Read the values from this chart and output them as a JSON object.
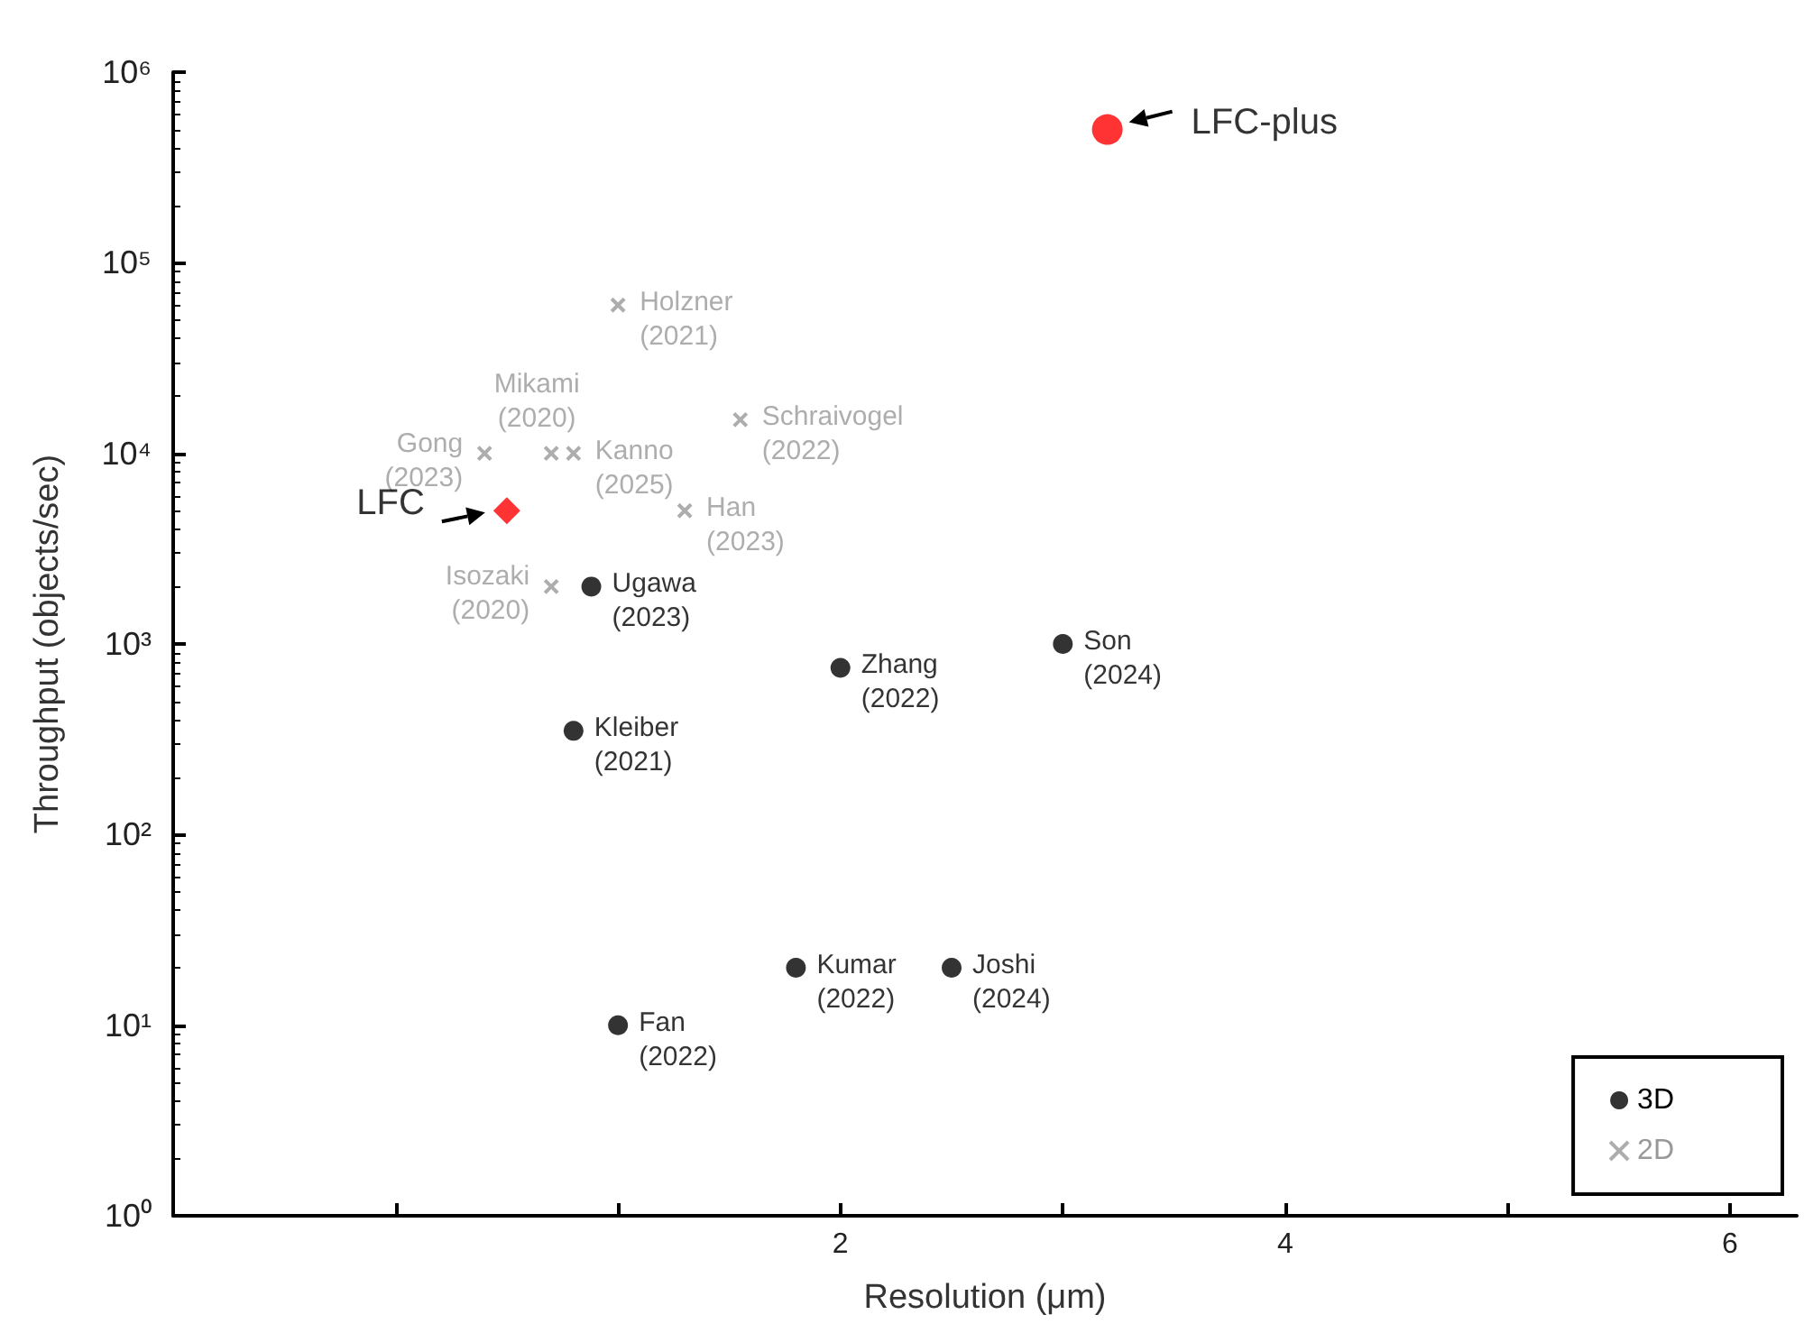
{
  "chart_data": {
    "type": "scatter",
    "xlabel": "Resolution (μm)",
    "ylabel": "Throughput (objects/sec)",
    "log": "y",
    "grid": false,
    "legend": "bottom right",
    "xlim": [
      -1,
      6.3
    ],
    "xticks": [
      {
        "value": 0,
        "label": null
      },
      {
        "value": 1,
        "label": null
      },
      2,
      {
        "value": 3,
        "label": null
      },
      4,
      {
        "value": 5,
        "label": null
      },
      6
    ],
    "ylim": [
      1,
      1000000
    ],
    "yticks": [
      {
        "value": 1,
        "label": "10⁰"
      },
      {
        "value": 10,
        "label": "10¹"
      },
      {
        "value": 100,
        "label": "10²"
      },
      {
        "value": 1000,
        "label": "10³"
      },
      {
        "value": 10000,
        "label": "10⁴"
      },
      {
        "value": 100000,
        "label": "10⁵"
      },
      {
        "value": 1000000,
        "label": "10⁶"
      }
    ],
    "series": [
      {
        "name": "3D",
        "color": "#000000",
        "marker": "circle",
        "x": [
          0.88,
          0.8,
          2.0,
          3.0,
          1.8,
          2.5,
          1.0
        ],
        "values": [
          2000,
          350,
          750,
          1000,
          20,
          20,
          10
        ]
      },
      {
        "name": "2D",
        "color": "#999999",
        "marker": "cross",
        "x": [
          1.0,
          0.4,
          0.7,
          0.8,
          1.55,
          1.3,
          0.7
        ],
        "values": [
          60000,
          10000,
          10000,
          10000,
          15000,
          5000,
          2000
        ]
      },
      {
        "color": "#ff0000",
        "marker": "diamond",
        "x": [
          0.5
        ],
        "values": [
          5000
        ]
      },
      {
        "color": "#ff0000",
        "marker": "circle",
        "x": [
          3.2
        ],
        "values": [
          500000
        ]
      }
    ],
    "annotations": [
      {
        "text": "Ugawa\n(2023)",
        "x": 0.88,
        "y": 2000
      },
      {
        "text": "Kleiber\n(2021)",
        "x": 0.8,
        "y": 350
      },
      {
        "text": "Zhang\n(2022)",
        "x": 2.0,
        "y": 750
      },
      {
        "text": "Son\n(2024)",
        "x": 3.0,
        "y": 1000
      },
      {
        "text": "Kumar\n(2022)",
        "x": 1.8,
        "y": 20
      },
      {
        "text": "Joshi\n(2024)",
        "x": 2.5,
        "y": 20
      },
      {
        "text": "Fan\n(2022)",
        "x": 1.0,
        "y": 10
      },
      {
        "text": "Holzner\n(2021)",
        "x": 1.0,
        "y": 60000
      },
      {
        "text": "Gong\n(2023)",
        "x": 0.4,
        "y": 10000
      },
      {
        "text": "Mikami\n(2020)",
        "x": 0.7,
        "y": 10000
      },
      {
        "text": "Kanno\n(2025)",
        "x": 0.8,
        "y": 10000
      },
      {
        "text": "Schraivogel\n(2022)",
        "x": 1.55,
        "y": 15000
      },
      {
        "text": "Han\n(2023)",
        "x": 1.3,
        "y": 5000
      },
      {
        "text": "Isozaki\n(2020)",
        "x": 0.7,
        "y": 2000
      },
      {
        "text": "LFC",
        "x": 0.5,
        "y": 5000
      },
      {
        "text": "LFC-plus",
        "x": 3.2,
        "y": 500000
      }
    ]
  }
}
